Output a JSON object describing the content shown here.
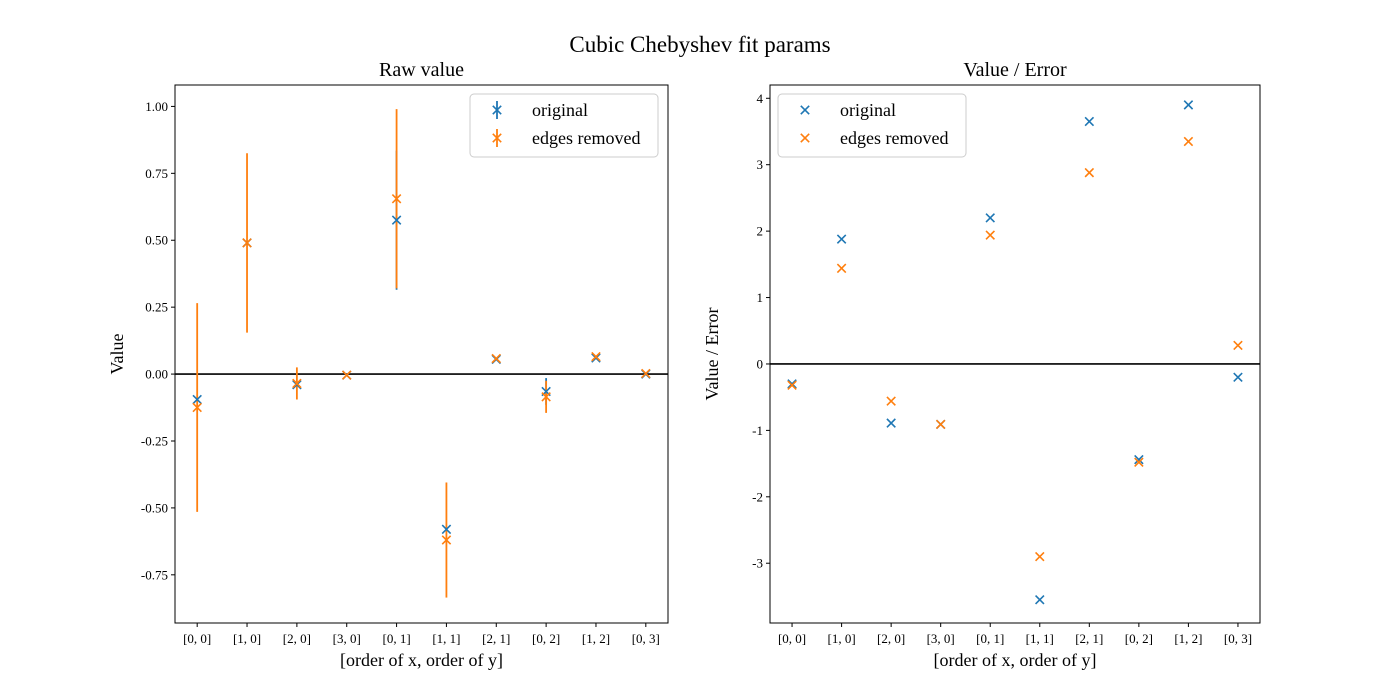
{
  "figure": {
    "suptitle": "Cubic Chebyshev fit params",
    "colors": {
      "original": "#1f77b4",
      "edges_removed": "#ff7f0e",
      "zero_line": "#000000"
    }
  },
  "chart_data": [
    {
      "type": "scatter",
      "title": "Raw value",
      "xlabel": "[order of x, order of y]",
      "ylabel": "Value",
      "categories": [
        "[0, 0]",
        "[1, 0]",
        "[2, 0]",
        "[3, 0]",
        "[0, 1]",
        "[1, 1]",
        "[2, 1]",
        "[0, 2]",
        "[1, 2]",
        "[0, 3]"
      ],
      "ylim": [
        -0.93,
        1.08
      ],
      "yticks": [
        -0.75,
        -0.5,
        -0.25,
        0.0,
        0.25,
        0.5,
        0.75,
        1.0
      ],
      "ytick_labels": [
        "-0.75",
        "-0.50",
        "-0.25",
        "0.00",
        "0.25",
        "0.50",
        "0.75",
        "1.00"
      ],
      "hline": 0,
      "legend": {
        "position": "top-right",
        "marker": "errorbar-x"
      },
      "series": [
        {
          "name": "original",
          "values": [
            -0.095,
            0.49,
            -0.04,
            -0.004,
            0.575,
            -0.58,
            0.055,
            -0.065,
            0.06,
            0.0
          ],
          "errors": [
            0.0,
            0.0,
            0.0,
            0.0,
            0.26,
            0.0,
            0.0,
            0.05,
            0.0,
            0.0
          ]
        },
        {
          "name": "edges removed",
          "values": [
            -0.125,
            0.49,
            -0.035,
            -0.004,
            0.655,
            -0.62,
            0.058,
            -0.085,
            0.065,
            0.002
          ],
          "errors": [
            0.39,
            0.335,
            0.06,
            0.0,
            0.335,
            0.215,
            0.0,
            0.06,
            0.0,
            0.0
          ]
        }
      ]
    },
    {
      "type": "scatter",
      "title": "Value / Error",
      "xlabel": "[order of x, order of y]",
      "ylabel": "Value / Error",
      "categories": [
        "[0, 0]",
        "[1, 0]",
        "[2, 0]",
        "[3, 0]",
        "[0, 1]",
        "[1, 1]",
        "[2, 1]",
        "[0, 2]",
        "[1, 2]",
        "[0, 3]"
      ],
      "ylim": [
        -3.9,
        4.2
      ],
      "yticks": [
        -3,
        -2,
        -1,
        0,
        1,
        2,
        3,
        4
      ],
      "ytick_labels": [
        "-3",
        "-2",
        "-1",
        "0",
        "1",
        "2",
        "3",
        "4"
      ],
      "hline": 0,
      "legend": {
        "position": "top-left",
        "marker": "x"
      },
      "series": [
        {
          "name": "original",
          "values": [
            -0.3,
            1.88,
            -0.89,
            -0.91,
            2.2,
            -3.55,
            3.65,
            -1.44,
            3.9,
            -0.2
          ]
        },
        {
          "name": "edges removed",
          "values": [
            -0.32,
            1.44,
            -0.56,
            -0.91,
            1.94,
            -2.9,
            2.88,
            -1.48,
            3.35,
            0.28
          ]
        }
      ]
    }
  ]
}
